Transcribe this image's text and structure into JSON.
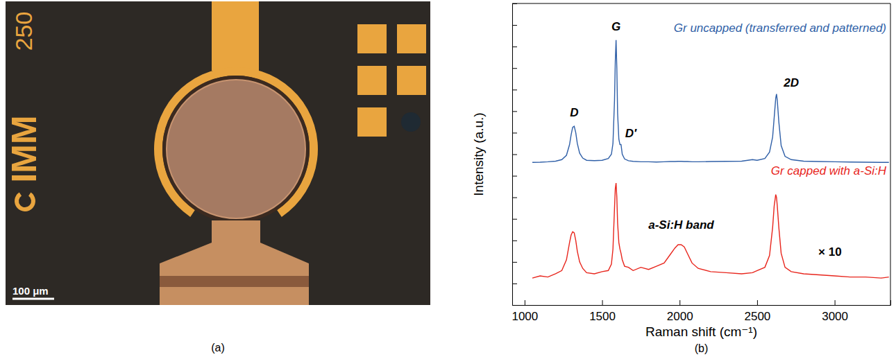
{
  "image_panel": {
    "label": "(a)",
    "texts": {
      "mask_number": "250",
      "logo": "IMM",
      "scale_bar": "100 μm"
    }
  },
  "chart_data": {
    "type": "line",
    "panel_label": "(b)",
    "x_label": "Raman shift (cm⁻¹)",
    "y_label": "Intensity (a.u.)",
    "xlim": [
      920,
      3360
    ],
    "xticks": [
      1000,
      1500,
      2000,
      2500,
      3000
    ],
    "ylim": [
      0,
      14
    ],
    "yticks": [
      0,
      1,
      2,
      3,
      4,
      5,
      6,
      7,
      8,
      9,
      10,
      11,
      12,
      13,
      14
    ],
    "tick_labels": "x",
    "grid": false,
    "x": [
      1050,
      1100,
      1150,
      1200,
      1240,
      1270,
      1290,
      1300,
      1310,
      1320,
      1330,
      1340,
      1355,
      1375,
      1400,
      1450,
      1500,
      1540,
      1560,
      1570,
      1580,
      1585,
      1590,
      1595,
      1600,
      1608,
      1615,
      1622,
      1630,
      1645,
      1670,
      1700,
      1750,
      1800,
      1850,
      1900,
      1940,
      1970,
      1990,
      2010,
      2030,
      2050,
      2080,
      2120,
      2200,
      2300,
      2400,
      2470,
      2500,
      2550,
      2580,
      2600,
      2610,
      2620,
      2625,
      2630,
      2640,
      2655,
      2680,
      2720,
      2800,
      2900,
      3000,
      3100,
      3200,
      3300,
      3350
    ],
    "series": [
      {
        "name": "Gr uncapped (transferred and patterned)",
        "color": "#2f5fa7",
        "values": [
          6.62,
          6.63,
          6.65,
          6.68,
          6.75,
          6.95,
          7.45,
          7.9,
          8.25,
          8.3,
          8.0,
          7.5,
          7.05,
          6.82,
          6.72,
          6.7,
          6.72,
          6.8,
          7.0,
          7.5,
          9.5,
          11.3,
          12.3,
          11.0,
          8.9,
          7.7,
          7.45,
          7.45,
          7.0,
          6.78,
          6.7,
          6.67,
          6.65,
          6.65,
          6.64,
          6.65,
          6.66,
          6.66,
          6.67,
          6.67,
          6.66,
          6.66,
          6.65,
          6.65,
          6.66,
          6.67,
          6.68,
          6.75,
          6.72,
          6.8,
          7.1,
          7.8,
          8.7,
          9.6,
          9.8,
          9.5,
          8.5,
          7.4,
          6.9,
          6.75,
          6.68,
          6.66,
          6.65,
          6.64,
          6.63,
          6.62,
          6.62
        ]
      },
      {
        "name": "Gr capped with a-Si:H",
        "color": "#e8251c",
        "values": [
          1.25,
          1.35,
          1.3,
          1.45,
          1.6,
          2.1,
          2.9,
          3.25,
          3.4,
          3.35,
          3.0,
          2.5,
          2.0,
          1.7,
          1.5,
          1.45,
          1.55,
          1.6,
          1.9,
          2.6,
          4.5,
          5.4,
          5.66,
          5.0,
          3.8,
          2.9,
          2.6,
          2.4,
          2.1,
          1.8,
          1.75,
          1.6,
          1.75,
          1.65,
          1.8,
          1.95,
          2.35,
          2.65,
          2.8,
          2.8,
          2.7,
          2.4,
          1.95,
          1.7,
          1.55,
          1.5,
          1.45,
          1.5,
          1.6,
          1.75,
          2.3,
          3.6,
          4.6,
          5.13,
          5.0,
          4.6,
          3.6,
          2.4,
          1.75,
          1.55,
          1.45,
          1.4,
          1.35,
          1.3,
          1.3,
          1.25,
          1.3
        ]
      }
    ],
    "annotations": [
      {
        "text": "G",
        "x": 1590,
        "y": 12.75
      },
      {
        "text": "D",
        "x": 1320,
        "y": 8.75
      },
      {
        "text": "D′",
        "x": 1685,
        "y": 7.8
      },
      {
        "text": "2D",
        "x": 2720,
        "y": 10.15
      },
      {
        "text": "a-Si:H band",
        "x": 2010,
        "y": 3.55
      },
      {
        "text": "× 10",
        "x": 2970,
        "y": 2.27
      }
    ]
  }
}
